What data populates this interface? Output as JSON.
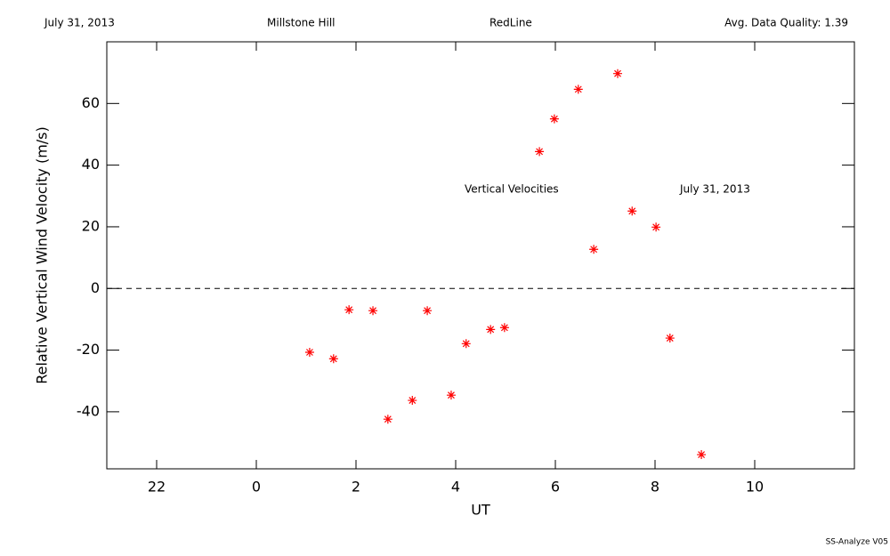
{
  "chart_data": {
    "type": "scatter",
    "header": [
      "July 31, 2013",
      "Millstone Hill",
      "RedLine",
      "Avg. Data Quality: 1.39"
    ],
    "annotations": [
      "Vertical Velocities",
      "July 31, 2013"
    ],
    "footer": "SS-Analyze V05",
    "xlabel": "UT",
    "ylabel": "Relative Vertical Wind Velocity (m/s)",
    "xlim": [
      -3,
      12
    ],
    "xticks": [
      {
        "value": -2,
        "label": "22"
      },
      0,
      2,
      4,
      6,
      8,
      10
    ],
    "ylim": [
      -58.5,
      80
    ],
    "yticks": [
      -40,
      -20,
      0,
      20,
      40,
      60
    ],
    "reference_line": 0,
    "series": [
      {
        "color": "#ff0000",
        "x": [
          1.07,
          1.55,
          1.86,
          2.34,
          2.64,
          3.13,
          3.43,
          3.91,
          4.21,
          4.7,
          4.98,
          5.68,
          5.98,
          6.46,
          6.77,
          7.25,
          7.54,
          8.02,
          8.3,
          8.93
        ],
        "values": [
          -20.7,
          -22.8,
          -6.9,
          -7.2,
          -42.4,
          -36.3,
          -7.2,
          -34.6,
          -17.9,
          -13.3,
          -12.7,
          44.4,
          55.0,
          64.6,
          12.7,
          69.7,
          25.1,
          19.9,
          -16.1,
          -53.9
        ]
      }
    ]
  }
}
